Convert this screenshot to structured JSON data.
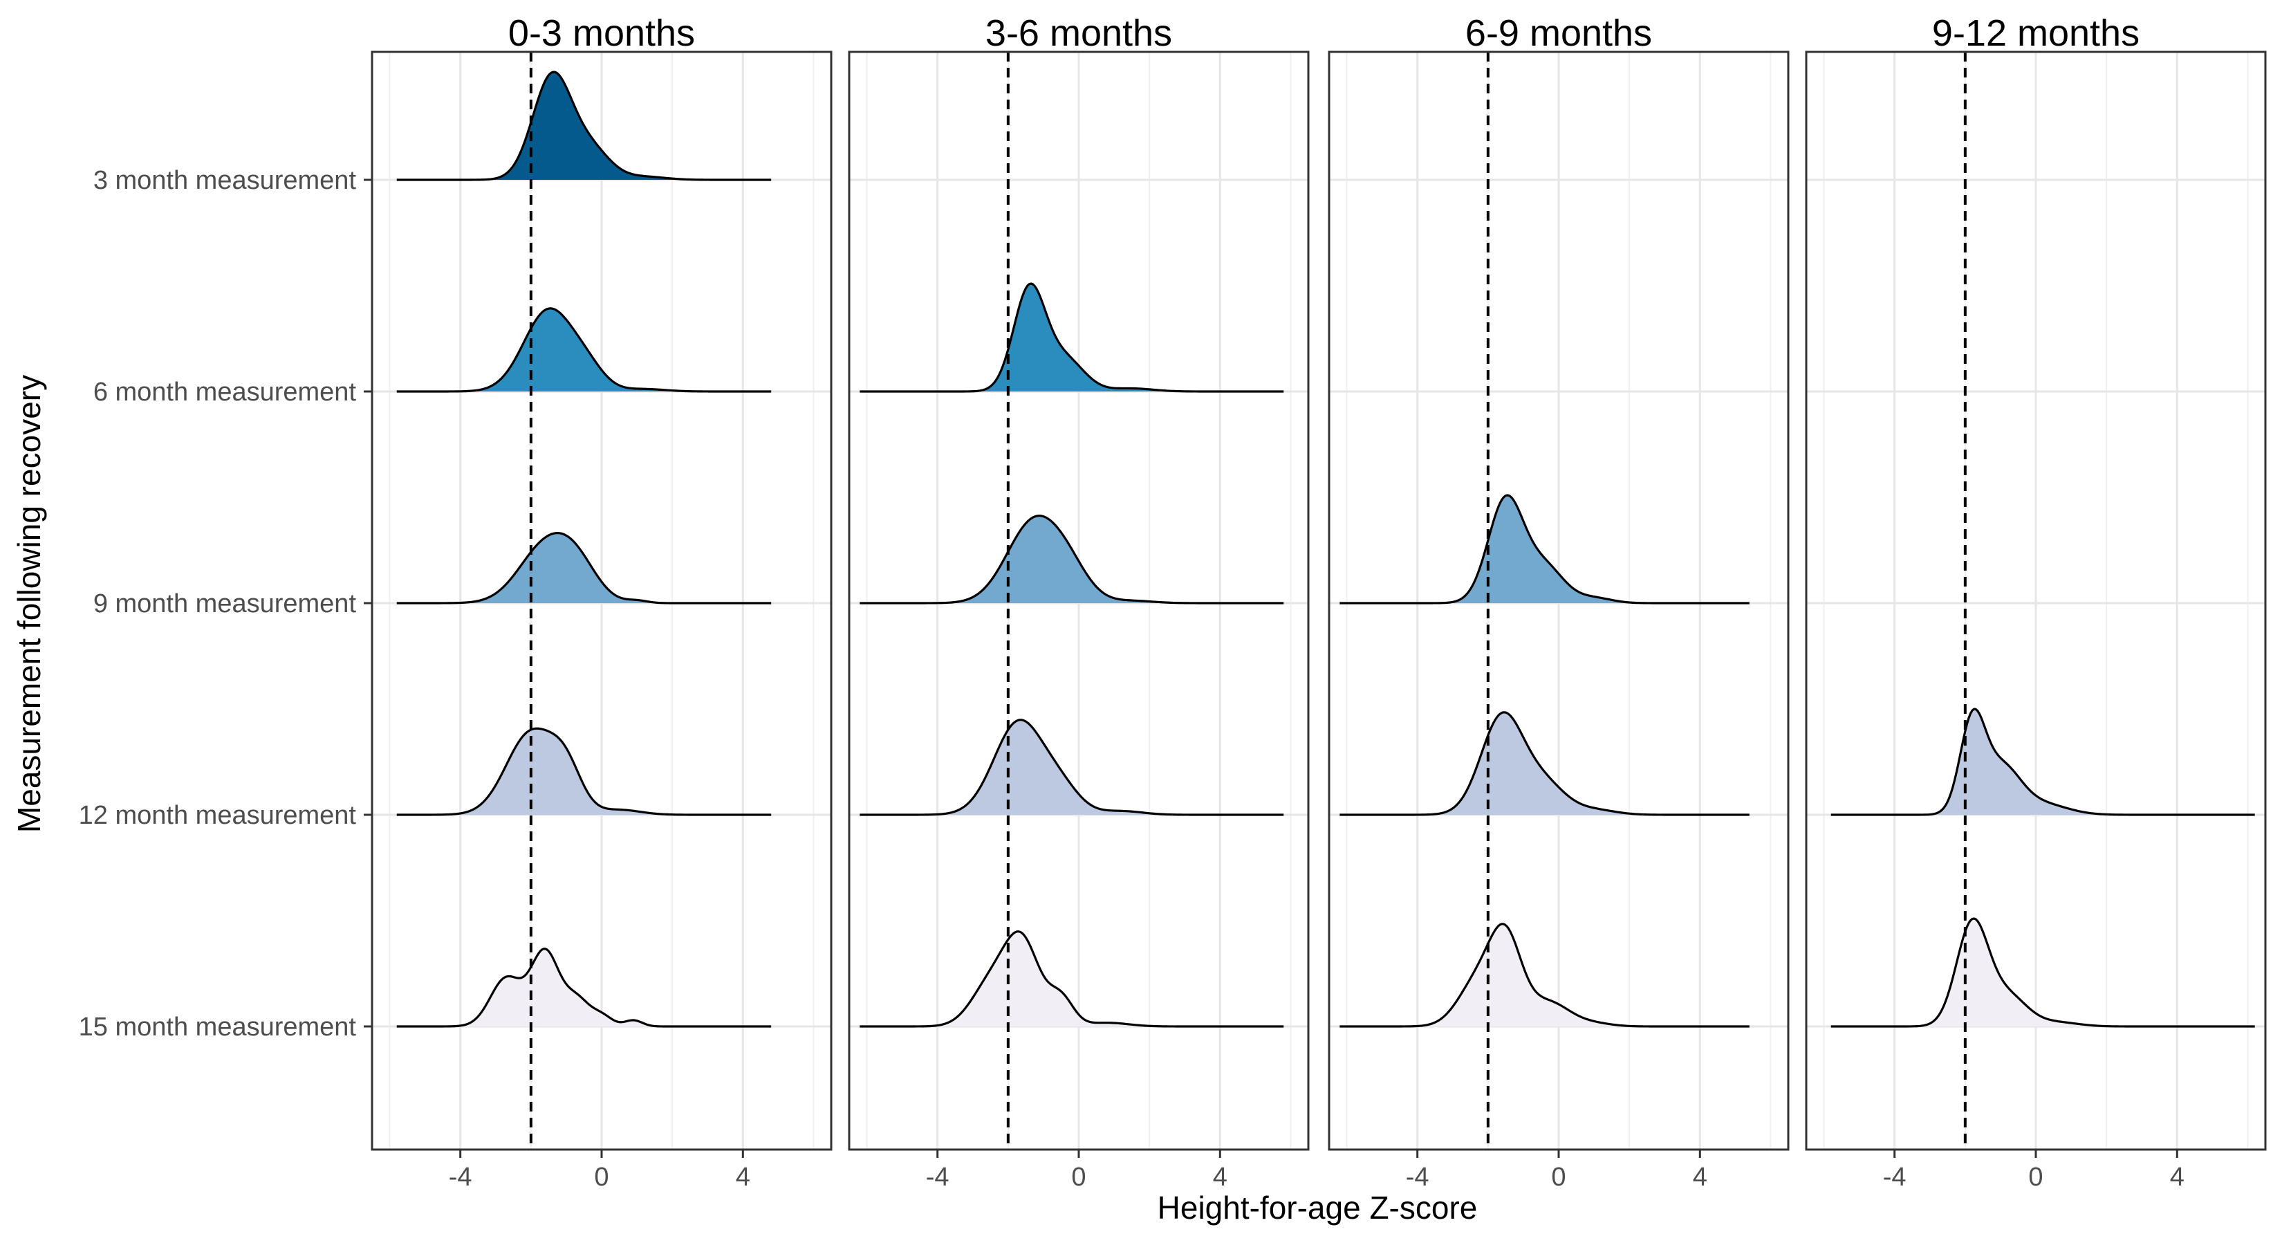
{
  "chart_data": {
    "type": "ridgeline",
    "xlabel": "Height-for-age Z-score",
    "ylabel": "Measurement following recovery",
    "xlim": [
      -6.5,
      6.5
    ],
    "x_ticks": [
      -4,
      0,
      4
    ],
    "x_tick_labels": [
      "-4",
      "0",
      "4"
    ],
    "reference_line_x": -2,
    "reference_line_style": "dashed",
    "grid": true,
    "rows": [
      "3 month measurement",
      "6 month measurement",
      "9 month measurement",
      "12 month measurement",
      "15 month measurement"
    ],
    "row_colors": [
      "#045a8d",
      "#2b8cbe",
      "#74a9cf",
      "#bdc9e1",
      "#f1eef6"
    ],
    "panels": [
      {
        "title": "0-3 months",
        "x_range": [
          -5.8,
          4.8
        ],
        "ridges": [
          {
            "row": 0,
            "peak": 1.0,
            "components": [
              {
                "mu": -1.4,
                "sd": 0.55,
                "w": 1.0
              },
              {
                "mu": -0.3,
                "sd": 0.55,
                "w": 0.28
              },
              {
                "mu": 1.2,
                "sd": 0.6,
                "w": 0.03
              }
            ]
          },
          {
            "row": 1,
            "peak": 0.77,
            "components": [
              {
                "mu": -1.5,
                "sd": 0.7,
                "w": 1.0
              },
              {
                "mu": -0.4,
                "sd": 0.5,
                "w": 0.22
              },
              {
                "mu": 1.2,
                "sd": 0.6,
                "w": 0.03
              }
            ]
          },
          {
            "row": 2,
            "peak": 0.65,
            "components": [
              {
                "mu": -1.6,
                "sd": 0.75,
                "w": 0.9
              },
              {
                "mu": -0.7,
                "sd": 0.6,
                "w": 0.5
              },
              {
                "mu": 1.0,
                "sd": 0.3,
                "w": 0.04
              }
            ]
          },
          {
            "row": 3,
            "peak": 0.8,
            "components": [
              {
                "mu": -2.0,
                "sd": 0.7,
                "w": 1.0
              },
              {
                "mu": -1.0,
                "sd": 0.45,
                "w": 0.45
              },
              {
                "mu": 0.5,
                "sd": 0.6,
                "w": 0.06
              }
            ]
          },
          {
            "row": 4,
            "peak": 0.72,
            "components": [
              {
                "mu": -2.7,
                "sd": 0.45,
                "w": 0.55
              },
              {
                "mu": -1.6,
                "sd": 0.4,
                "w": 0.85
              },
              {
                "mu": -0.7,
                "sd": 0.35,
                "w": 0.3
              },
              {
                "mu": 0.0,
                "sd": 0.3,
                "w": 0.12
              },
              {
                "mu": 0.9,
                "sd": 0.25,
                "w": 0.07
              }
            ]
          }
        ]
      },
      {
        "title": "3-6 months",
        "x_range": [
          -6.2,
          5.8
        ],
        "ridges": [
          {
            "row": 1,
            "peak": 1.0,
            "components": [
              {
                "mu": -1.4,
                "sd": 0.45,
                "w": 1.0
              },
              {
                "mu": -0.4,
                "sd": 0.55,
                "w": 0.32
              },
              {
                "mu": 1.5,
                "sd": 0.6,
                "w": 0.03
              }
            ]
          },
          {
            "row": 2,
            "peak": 0.81,
            "components": [
              {
                "mu": -1.3,
                "sd": 0.75,
                "w": 1.0
              },
              {
                "mu": -0.3,
                "sd": 0.6,
                "w": 0.35
              },
              {
                "mu": 1.5,
                "sd": 0.6,
                "w": 0.03
              }
            ]
          },
          {
            "row": 3,
            "peak": 0.88,
            "components": [
              {
                "mu": -1.7,
                "sd": 0.7,
                "w": 1.0
              },
              {
                "mu": -0.5,
                "sd": 0.55,
                "w": 0.25
              },
              {
                "mu": 1.2,
                "sd": 0.6,
                "w": 0.04
              }
            ]
          },
          {
            "row": 4,
            "peak": 0.88,
            "components": [
              {
                "mu": -2.5,
                "sd": 0.55,
                "w": 0.45
              },
              {
                "mu": -1.6,
                "sd": 0.5,
                "w": 0.9
              },
              {
                "mu": -0.5,
                "sd": 0.35,
                "w": 0.3
              },
              {
                "mu": 0.8,
                "sd": 0.6,
                "w": 0.04
              }
            ]
          }
        ]
      },
      {
        "title": "6-9 months",
        "x_range": [
          -6.2,
          5.4
        ],
        "ridges": [
          {
            "row": 2,
            "peak": 1.0,
            "components": [
              {
                "mu": -1.5,
                "sd": 0.5,
                "w": 1.0
              },
              {
                "mu": -0.4,
                "sd": 0.55,
                "w": 0.35
              },
              {
                "mu": 1.0,
                "sd": 0.5,
                "w": 0.05
              }
            ]
          },
          {
            "row": 3,
            "peak": 0.95,
            "components": [
              {
                "mu": -1.6,
                "sd": 0.6,
                "w": 1.0
              },
              {
                "mu": -0.4,
                "sd": 0.6,
                "w": 0.3
              },
              {
                "mu": 1.0,
                "sd": 0.6,
                "w": 0.05
              }
            ]
          },
          {
            "row": 4,
            "peak": 0.95,
            "components": [
              {
                "mu": -2.3,
                "sd": 0.55,
                "w": 0.45
              },
              {
                "mu": -1.5,
                "sd": 0.45,
                "w": 0.85
              },
              {
                "mu": -0.3,
                "sd": 0.6,
                "w": 0.25
              },
              {
                "mu": 1.0,
                "sd": 0.5,
                "w": 0.03
              }
            ]
          }
        ]
      },
      {
        "title": "9-12 months",
        "x_range": [
          -5.8,
          6.2
        ],
        "ridges": [
          {
            "row": 3,
            "peak": 0.98,
            "components": [
              {
                "mu": -1.8,
                "sd": 0.35,
                "w": 1.0
              },
              {
                "mu": -1.0,
                "sd": 0.55,
                "w": 0.55
              },
              {
                "mu": 0.2,
                "sd": 0.7,
                "w": 0.12
              }
            ]
          },
          {
            "row": 4,
            "peak": 1.0,
            "components": [
              {
                "mu": -1.8,
                "sd": 0.45,
                "w": 1.0
              },
              {
                "mu": -0.8,
                "sd": 0.55,
                "w": 0.3
              },
              {
                "mu": 0.6,
                "sd": 0.6,
                "w": 0.04
              }
            ]
          }
        ]
      }
    ]
  }
}
